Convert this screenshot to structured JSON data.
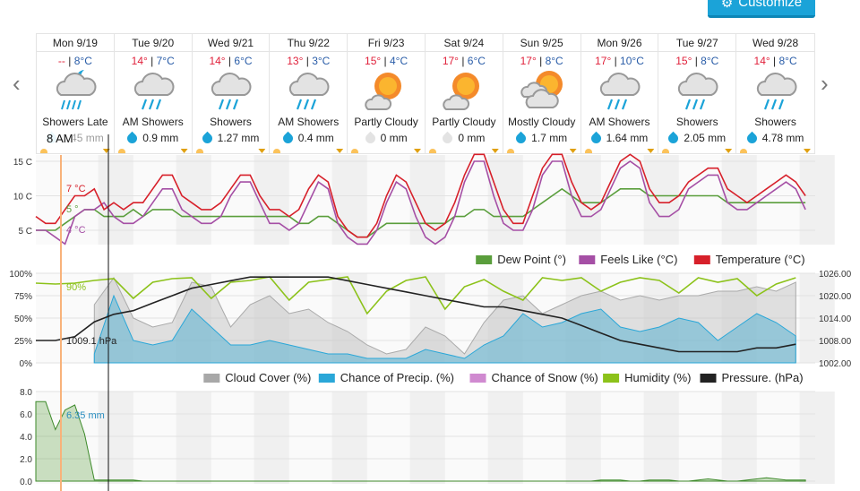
{
  "toolbar": {
    "customize_label": "Customize",
    "customize_icon": "gear-icon"
  },
  "nav": {
    "prev_icon": "chevron-left-icon",
    "next_icon": "chevron-right-icon"
  },
  "colors": {
    "accent": "#1ba3d8",
    "high": "#e0203a",
    "low": "#2a5da8",
    "dew": "#5a9e3c",
    "feels": "#a54fa5",
    "temp": "#d7202a",
    "cloud": "#a8a8a8",
    "precip": "#2aa7d8",
    "snow": "#d08ad0",
    "humidity": "#8cc21a",
    "pressure": "#222222"
  },
  "tooltip": {
    "time": "8 AM",
    "temp": "7 °C",
    "dew": "5 °",
    "feels": "4 °C",
    "humidity": "90%",
    "pressure": "1009.1 hPa",
    "precip": "6.35 mm"
  },
  "days": [
    {
      "name": "Mon 9/19",
      "high": "--",
      "low": "8°C",
      "icon": "showers-night-icon",
      "cond": "Showers Late",
      "precip": "0.45 mm",
      "wet": true
    },
    {
      "name": "Tue 9/20",
      "high": "14°",
      "low": "7°C",
      "icon": "rain-cloud-icon",
      "cond": "AM Showers",
      "precip": "0.9 mm",
      "wet": true
    },
    {
      "name": "Wed 9/21",
      "high": "14°",
      "low": "6°C",
      "icon": "rain-cloud-icon",
      "cond": "Showers",
      "precip": "1.27 mm",
      "wet": true
    },
    {
      "name": "Thu 9/22",
      "high": "13°",
      "low": "3°C",
      "icon": "rain-cloud-icon",
      "cond": "AM Showers",
      "precip": "0.4 mm",
      "wet": true
    },
    {
      "name": "Fri 9/23",
      "high": "15°",
      "low": "4°C",
      "icon": "partly-cloudy-icon",
      "cond": "Partly Cloudy",
      "precip": "0 mm",
      "wet": false
    },
    {
      "name": "Sat 9/24",
      "high": "17°",
      "low": "6°C",
      "icon": "partly-cloudy-icon",
      "cond": "Partly Cloudy",
      "precip": "0 mm",
      "wet": false
    },
    {
      "name": "Sun 9/25",
      "high": "17°",
      "low": "8°C",
      "icon": "mostly-cloudy-icon",
      "cond": "Mostly Cloudy",
      "precip": "1.7 mm",
      "wet": true
    },
    {
      "name": "Mon 9/26",
      "high": "17°",
      "low": "10°C",
      "icon": "rain-cloud-icon",
      "cond": "AM Showers",
      "precip": "1.64 mm",
      "wet": true
    },
    {
      "name": "Tue 9/27",
      "high": "15°",
      "low": "8°C",
      "icon": "rain-cloud-icon",
      "cond": "Showers",
      "precip": "2.05 mm",
      "wet": true
    },
    {
      "name": "Wed 9/28",
      "high": "14°",
      "low": "8°C",
      "icon": "rain-cloud-icon",
      "cond": "Showers",
      "precip": "4.78 mm",
      "wet": true
    }
  ],
  "chart_data": [
    {
      "type": "line",
      "ylim": [
        3,
        16
      ],
      "yticks": [
        "5 C",
        "10 C",
        "15 C"
      ],
      "legend": [
        "Dew Point (°)",
        "Feels Like (°C)",
        "Temperature (°C)"
      ],
      "legend_placement": "bottom-right",
      "series": [
        {
          "name": "Temperature (°C)",
          "values": [
            7,
            6,
            6,
            8,
            10,
            10,
            11,
            8,
            9,
            8,
            9,
            9,
            11,
            13,
            13,
            10,
            9,
            8,
            8,
            9,
            11,
            13,
            13,
            10,
            8,
            8,
            7,
            8,
            11,
            13,
            12,
            7,
            5,
            4,
            4,
            6,
            10,
            13,
            12,
            9,
            6,
            5,
            6,
            9,
            13,
            16,
            16,
            12,
            8,
            6,
            6,
            10,
            14,
            16,
            16,
            12,
            9,
            8,
            9,
            12,
            15,
            16,
            15,
            11,
            9,
            9,
            10,
            12,
            13,
            14,
            14,
            11,
            10,
            9,
            10,
            11,
            12,
            13,
            12,
            10
          ]
        },
        {
          "name": "Feels Like (°C)",
          "values": [
            5,
            5,
            4,
            3,
            7,
            8,
            8,
            9,
            7,
            6,
            6,
            7,
            9,
            11,
            11,
            8,
            7,
            6,
            6,
            7,
            10,
            12,
            12,
            9,
            6,
            6,
            5,
            6,
            9,
            12,
            11,
            6,
            4,
            3,
            3,
            5,
            9,
            12,
            11,
            7,
            4,
            3,
            4,
            7,
            12,
            15,
            15,
            10,
            6,
            5,
            5,
            8,
            13,
            15,
            15,
            10,
            7,
            7,
            8,
            11,
            14,
            15,
            14,
            9,
            7,
            7,
            8,
            11,
            12,
            13,
            13,
            9,
            8,
            8,
            9,
            10,
            11,
            12,
            11,
            8
          ]
        },
        {
          "name": "Dew Point (°)",
          "values": [
            5,
            5,
            5,
            6,
            7,
            8,
            8,
            7,
            7,
            7,
            8,
            7,
            8,
            8,
            8,
            7,
            7,
            7,
            7,
            7,
            7,
            7,
            7,
            7,
            7,
            7,
            7,
            6,
            6,
            7,
            7,
            6,
            5,
            4,
            4,
            5,
            6,
            6,
            6,
            6,
            6,
            6,
            6,
            7,
            7,
            8,
            8,
            7,
            7,
            7,
            7,
            8,
            9,
            10,
            11,
            10,
            9,
            9,
            9,
            10,
            11,
            11,
            11,
            10,
            10,
            10,
            10,
            10,
            10,
            10,
            10,
            9,
            9,
            9,
            9,
            9,
            9,
            9,
            9,
            9
          ]
        }
      ]
    },
    {
      "type": "area",
      "ylim": [
        0,
        100
      ],
      "yticks": [
        "0%",
        "25%",
        "50%",
        "75%",
        "100%"
      ],
      "y2lim": [
        1002,
        1026
      ],
      "y2ticks": [
        "1002.00",
        "1008.00",
        "1014.00",
        "1020.00",
        "1026.00"
      ],
      "legend": [
        "Cloud Cover (%)",
        "Chance of Precip. (%)",
        "Chance of Snow (%)",
        "Humidity (%)",
        "Pressure. (hPa)"
      ],
      "legend_placement": "bottom-right",
      "series": [
        {
          "name": "Cloud Cover (%)",
          "values": [
            null,
            null,
            null,
            65,
            95,
            50,
            40,
            45,
            90,
            85,
            40,
            65,
            75,
            55,
            60,
            45,
            35,
            20,
            10,
            15,
            40,
            30,
            10,
            45,
            70,
            75,
            55,
            65,
            75,
            80,
            70,
            75,
            70,
            75,
            75,
            80,
            80,
            85,
            80,
            90
          ]
        },
        {
          "name": "Chance of Precip. (%)",
          "values": [
            null,
            null,
            null,
            10,
            75,
            25,
            20,
            25,
            60,
            40,
            20,
            20,
            25,
            20,
            15,
            10,
            10,
            5,
            5,
            5,
            15,
            10,
            5,
            20,
            30,
            55,
            40,
            45,
            55,
            60,
            40,
            35,
            40,
            50,
            45,
            25,
            40,
            55,
            45,
            30
          ]
        },
        {
          "name": "Chance of Snow (%)",
          "values": [
            null,
            null,
            null,
            0,
            0,
            0,
            0,
            0,
            0,
            0,
            0,
            0,
            0,
            0,
            0,
            0,
            0,
            0,
            0,
            0,
            0,
            0,
            0,
            0,
            0,
            0,
            0,
            0,
            0,
            0,
            0,
            0,
            0,
            0,
            0,
            0,
            0,
            0,
            0,
            0
          ]
        },
        {
          "name": "Humidity (%)",
          "values": [
            89,
            88,
            89,
            92,
            94,
            72,
            90,
            94,
            95,
            72,
            90,
            92,
            96,
            70,
            90,
            93,
            96,
            55,
            80,
            92,
            96,
            60,
            85,
            93,
            80,
            70,
            95,
            92,
            95,
            80,
            90,
            95,
            92,
            78,
            95,
            90,
            94,
            75,
            88,
            95
          ]
        },
        {
          "name": "Pressure. (hPa)",
          "values": [
            1008,
            1008,
            1009,
            1013,
            1015,
            1016,
            1018,
            1020,
            1022,
            1023,
            1024,
            1025,
            1025,
            1025,
            1025,
            1025,
            1024,
            1023,
            1022,
            1021,
            1020,
            1019,
            1018,
            1017,
            1017,
            1016,
            1015,
            1014,
            1012,
            1010,
            1008,
            1007,
            1006,
            1005,
            1005,
            1005,
            1005,
            1006,
            1006,
            1007
          ]
        }
      ]
    },
    {
      "type": "line",
      "ylim": [
        0,
        8
      ],
      "yticks": [
        "0.0",
        "2.0",
        "4.0",
        "6.0",
        "8.0"
      ],
      "series": [
        {
          "values": [
            7.1,
            7.1,
            4.6,
            6.35,
            6.8,
            4.2,
            0.1,
            0.1,
            0.1,
            0.1,
            0.1,
            0,
            0,
            0,
            0,
            0,
            0,
            0,
            0,
            0,
            0,
            0,
            0,
            0,
            0,
            0,
            0,
            0,
            0,
            0,
            0,
            0,
            0,
            0,
            0,
            0,
            0,
            0,
            0,
            0,
            0,
            0,
            0,
            0,
            0,
            0,
            0,
            0,
            0,
            0,
            0,
            0,
            0,
            0,
            0,
            0,
            0,
            0,
            0.1,
            0.1,
            0.1,
            0,
            0,
            0.1,
            0.1,
            0.1,
            0,
            0,
            0.1,
            0.2,
            0.1,
            0,
            0,
            0.1,
            0.2,
            0.3,
            0.2,
            0.1,
            0.1,
            0.1
          ]
        }
      ]
    }
  ]
}
